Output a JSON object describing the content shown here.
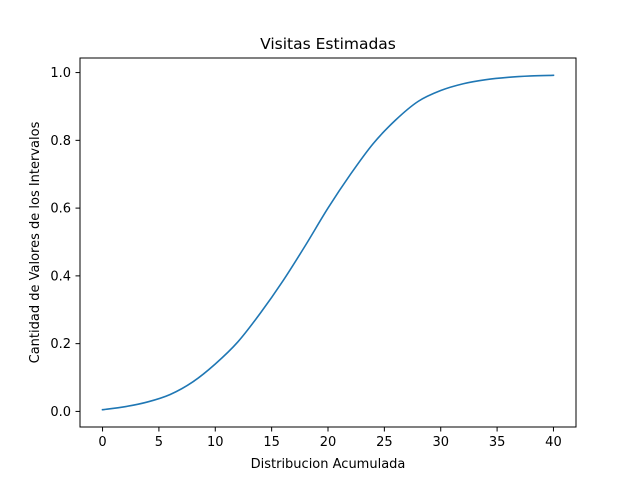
{
  "chart_data": {
    "type": "line",
    "title": "Visitas Estimadas",
    "xlabel": "Distribucion Acumulada",
    "ylabel": "Cantidad de Valores de los Intervalos",
    "xlim": [
      -2,
      42
    ],
    "ylim": [
      -0.046,
      1.043
    ],
    "xticks": [
      0,
      5,
      10,
      15,
      20,
      25,
      30,
      35,
      40
    ],
    "xtick_labels": [
      "0",
      "5",
      "10",
      "15",
      "20",
      "25",
      "30",
      "35",
      "40"
    ],
    "yticks": [
      0.0,
      0.2,
      0.4,
      0.6,
      0.8,
      1.0
    ],
    "ytick_labels": [
      "0.0",
      "0.2",
      "0.4",
      "0.6",
      "0.8",
      "1.0"
    ],
    "grid": false,
    "legend": "none",
    "series": [
      {
        "color": "#1f77b4",
        "x": [
          0,
          2,
          4,
          6,
          8,
          10,
          12,
          14,
          16,
          18,
          20,
          22,
          24,
          26,
          28,
          30,
          32,
          34,
          36,
          38,
          40
        ],
        "y": [
          0.005,
          0.014,
          0.028,
          0.05,
          0.087,
          0.14,
          0.205,
          0.29,
          0.385,
          0.49,
          0.6,
          0.7,
          0.79,
          0.86,
          0.915,
          0.947,
          0.967,
          0.979,
          0.986,
          0.99,
          0.992
        ]
      }
    ]
  }
}
